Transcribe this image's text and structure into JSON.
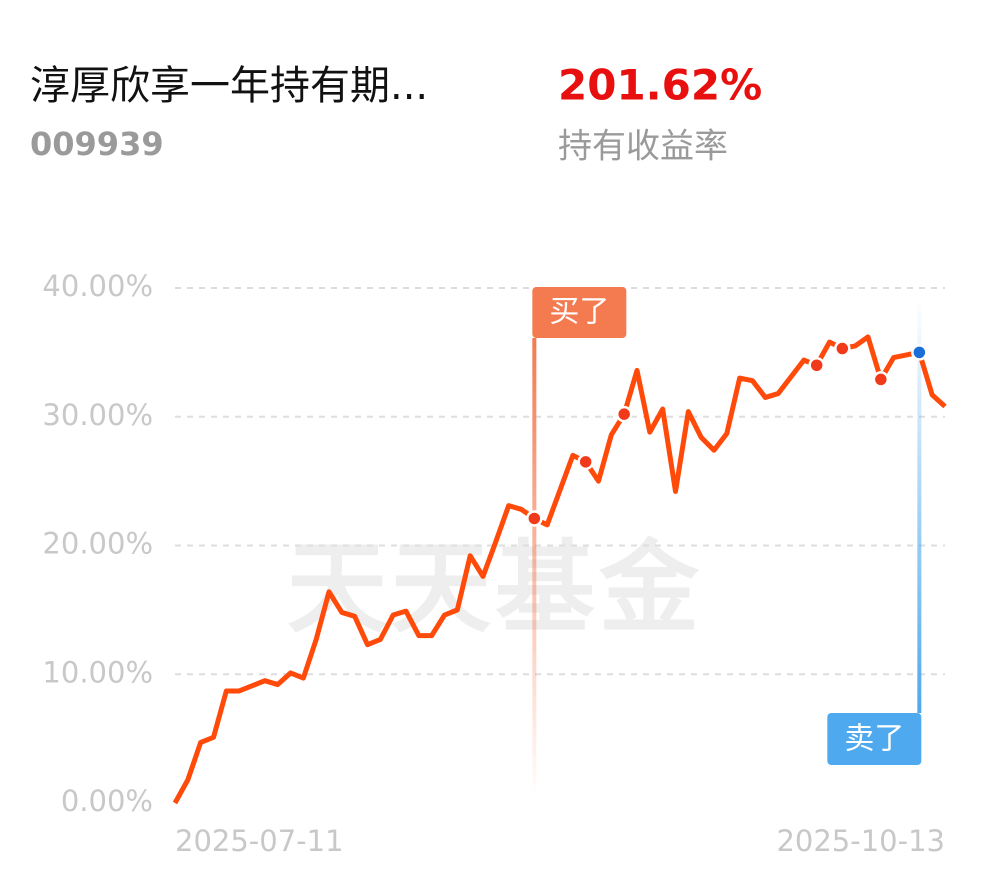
{
  "chart_data": {
    "type": "line",
    "title": "淳厚欣享一年持有期...",
    "subtitle": "009939",
    "return_value": "201.62%",
    "return_label": "持有收益率",
    "watermark": "天天基金",
    "categories": [
      "2025-07-11",
      null,
      null,
      null,
      null,
      null,
      null,
      null,
      null,
      null,
      null,
      null,
      null,
      null,
      null,
      null,
      null,
      null,
      null,
      null,
      null,
      null,
      null,
      null,
      null,
      null,
      null,
      null,
      null,
      null,
      null,
      null,
      null,
      null,
      null,
      null,
      null,
      null,
      null,
      null,
      null,
      null,
      null,
      null,
      null,
      null,
      null,
      null,
      null,
      null,
      null,
      null,
      null,
      null,
      null,
      null,
      null,
      null,
      null,
      null,
      "2025-10-13"
    ],
    "values": [
      0,
      1.8,
      4.7,
      5.1,
      8.7,
      8.7,
      9.1,
      9.5,
      9.2,
      10.1,
      9.7,
      12.7,
      16.4,
      14.8,
      14.5,
      12.3,
      12.7,
      14.6,
      14.9,
      13.0,
      13.0,
      14.6,
      15.0,
      19.2,
      17.6,
      20.3,
      23.1,
      22.8,
      22.1,
      21.6,
      24.3,
      27.0,
      26.5,
      25.0,
      28.6,
      30.2,
      33.6,
      28.8,
      30.6,
      24.2,
      30.4,
      28.4,
      27.4,
      28.7,
      33.0,
      32.8,
      31.5,
      31.8,
      33.1,
      34.4,
      34.0,
      35.8,
      35.3,
      35.5,
      36.2,
      32.9,
      34.6,
      34.8,
      35.0,
      31.7,
      30.8
    ],
    "color": "#ff4a0a",
    "markers": [
      28,
      32,
      35,
      50,
      52,
      55
    ],
    "marker_color": "#f03a1a",
    "buy": {
      "label": "买了",
      "index": 28,
      "color": "#f47a50"
    },
    "sell": {
      "label": "卖了",
      "index": 58,
      "color": "#4ea9ee"
    },
    "ylim": [
      0,
      40
    ],
    "yticks": [
      {
        "value": 0,
        "label": "0.00%"
      },
      {
        "value": 10,
        "label": "10.00%"
      },
      {
        "value": 20,
        "label": "20.00%"
      },
      {
        "value": 30,
        "label": "30.00%"
      },
      {
        "value": 40,
        "label": "40.00%"
      }
    ],
    "grid": true
  }
}
